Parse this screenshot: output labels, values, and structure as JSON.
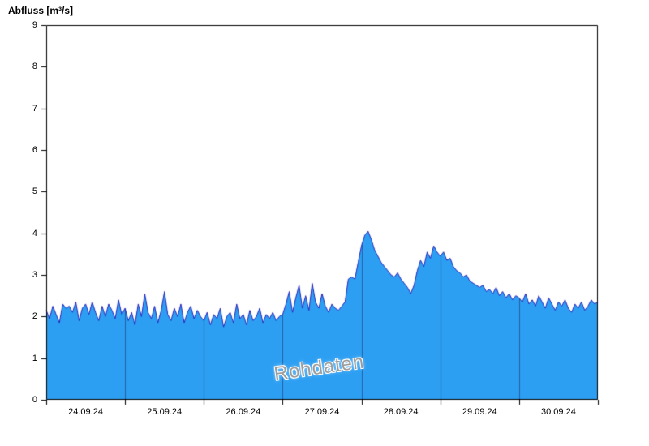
{
  "page": {
    "title": "Abfluss [m³/s]"
  },
  "watermark": "Rohdaten",
  "chart_data": {
    "type": "area",
    "title": "Abfluss [m³/s]",
    "ylabel": "Abfluss [m³/s]",
    "xlabel": "",
    "ylim": [
      0,
      9
    ],
    "yticks": [
      0,
      1,
      2,
      3,
      4,
      5,
      6,
      7,
      8,
      9
    ],
    "x_tick_labels": [
      "24.09.24",
      "25.09.24",
      "26.09.24",
      "27.09.24",
      "28.09.24",
      "29.09.24",
      "30.09.24"
    ],
    "x_days": 7,
    "points_per_day": 24,
    "grid": "vertical-day-boundaries",
    "legend": "none",
    "annotations": [
      "Rohdaten"
    ],
    "colors": {
      "fill": "#2d9ff2",
      "line": "#2222bb",
      "frame": "#000000",
      "day_separator": "#14144066"
    },
    "series": [
      {
        "name": "Abfluss Rohdaten",
        "unit": "m³/s",
        "values": [
          2.15,
          1.95,
          2.25,
          2.05,
          1.85,
          2.3,
          2.2,
          2.25,
          2.1,
          2.35,
          1.9,
          2.2,
          2.3,
          2.05,
          2.35,
          2.1,
          1.9,
          2.25,
          2.0,
          2.3,
          2.15,
          1.95,
          2.4,
          2.05,
          2.2,
          1.9,
          2.1,
          1.8,
          2.3,
          2.0,
          2.55,
          2.1,
          1.95,
          2.25,
          1.85,
          2.15,
          2.6,
          2.05,
          1.9,
          2.2,
          2.0,
          2.3,
          1.85,
          2.1,
          2.25,
          1.95,
          2.15,
          2.0,
          1.9,
          2.1,
          1.8,
          2.05,
          1.95,
          2.2,
          1.75,
          2.0,
          2.1,
          1.85,
          2.3,
          1.95,
          2.05,
          1.8,
          2.15,
          1.9,
          2.0,
          2.2,
          1.85,
          2.05,
          1.95,
          2.1,
          1.9,
          2.0,
          2.05,
          2.3,
          2.6,
          2.1,
          2.45,
          2.75,
          2.2,
          2.5,
          2.15,
          2.8,
          2.35,
          2.2,
          2.55,
          2.25,
          2.1,
          2.3,
          2.2,
          2.15,
          2.25,
          2.35,
          2.9,
          2.95,
          2.9,
          3.3,
          3.7,
          3.95,
          4.05,
          3.85,
          3.6,
          3.45,
          3.3,
          3.2,
          3.1,
          3.0,
          2.95,
          3.05,
          2.9,
          2.8,
          2.7,
          2.55,
          2.75,
          3.1,
          3.35,
          3.2,
          3.55,
          3.4,
          3.7,
          3.55,
          3.45,
          3.55,
          3.35,
          3.4,
          3.2,
          3.1,
          3.05,
          2.95,
          3.0,
          2.85,
          2.8,
          2.75,
          2.7,
          2.75,
          2.6,
          2.65,
          2.55,
          2.7,
          2.5,
          2.6,
          2.45,
          2.55,
          2.4,
          2.5,
          2.45,
          2.35,
          2.55,
          2.3,
          2.4,
          2.25,
          2.5,
          2.35,
          2.2,
          2.45,
          2.3,
          2.15,
          2.35,
          2.25,
          2.4,
          2.2,
          2.1,
          2.3,
          2.2,
          2.35,
          2.15,
          2.25,
          2.4,
          2.3,
          2.35
        ]
      }
    ]
  }
}
